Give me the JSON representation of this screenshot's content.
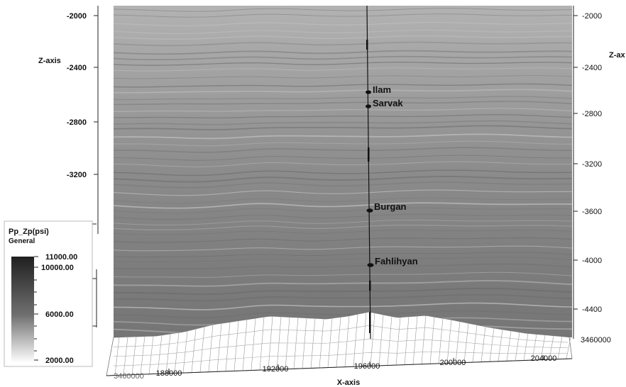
{
  "z_axis": {
    "title_left": "Z-axis",
    "title_right": "Z-ax",
    "left_ticks": [
      "-2000",
      "-2400",
      "-2800",
      "-3200"
    ],
    "right_ticks": [
      "-2000",
      "-2400",
      "-2800",
      "-3200",
      "-3600",
      "-4000",
      "-4400"
    ]
  },
  "x_axis": {
    "title": "X-axis",
    "ticks": [
      "188000",
      "192000",
      "196000",
      "200000",
      "204000"
    ],
    "corner_left": "3460000",
    "corner_right": "3460000"
  },
  "well": {
    "horizons": [
      "Ilam",
      "Sarvak",
      "Burgan",
      "Fahlihyan"
    ]
  },
  "legend": {
    "title": "Pp_Zp(psi)",
    "subtitle": "General",
    "ticks": [
      "11000.00",
      "10000.00",
      "6000.00",
      "2000.00"
    ],
    "color_top": "#202020",
    "color_bottom": "#ffffff"
  }
}
